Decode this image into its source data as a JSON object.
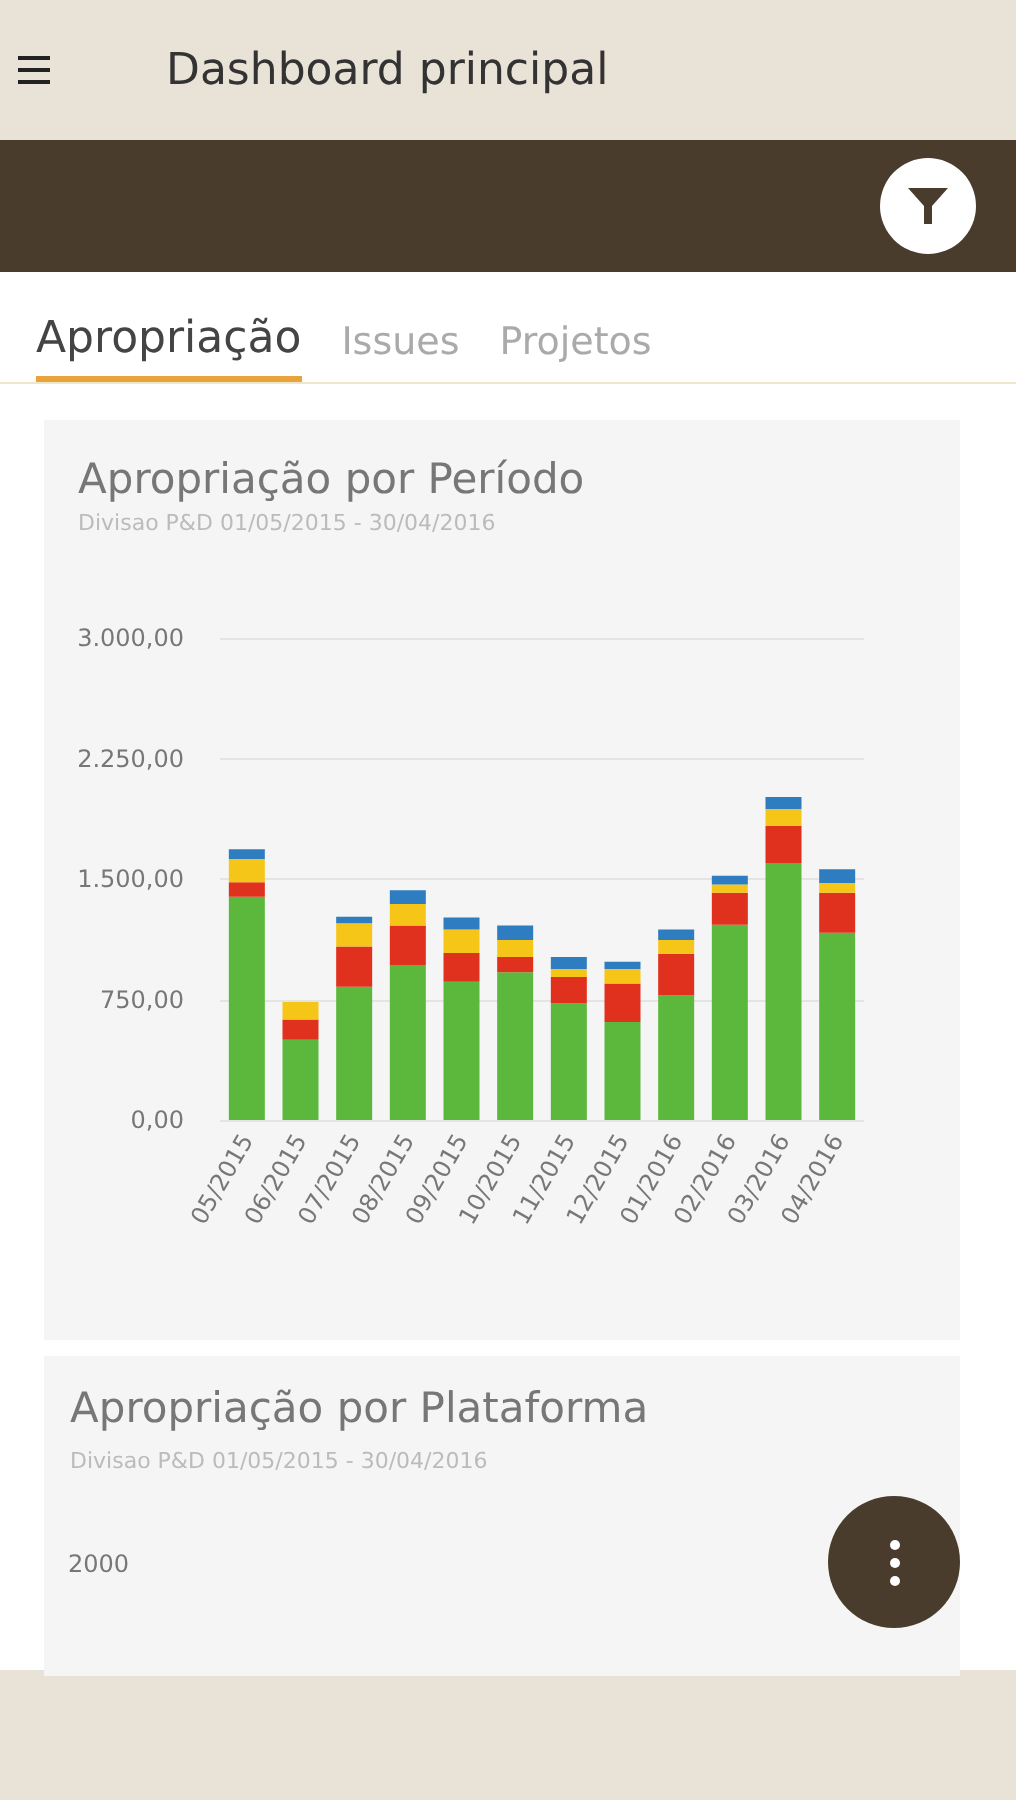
{
  "chart_data": [
    {
      "type": "other",
      "title": "Dashboard principal",
      "annotations": [
        "Apropriação",
        "Issues",
        "Projetos"
      ]
    },
    {
      "type": "bar",
      "title": "Apropriação por Período",
      "subtitle": "Divisao P&D 01/05/2015 - 30/04/2016",
      "categories": [
        "05/2015",
        "06/2015",
        "07/2015",
        "08/2015",
        "09/2015",
        "10/2015",
        "11/2015",
        "12/2015",
        "01/2016",
        "02/2016",
        "03/2016",
        "04/2016"
      ],
      "stacked": true,
      "series": [
        {
          "color": "#5cb83c",
          "values": [
            1390,
            500,
            830,
            965,
            860,
            920,
            725,
            610,
            775,
            1215,
            1600,
            1165
          ]
        },
        {
          "color": "#e0301e",
          "values": [
            90,
            125,
            250,
            245,
            180,
            95,
            165,
            240,
            260,
            200,
            230,
            250
          ]
        },
        {
          "color": "#f5c518",
          "values": [
            145,
            110,
            145,
            135,
            145,
            105,
            50,
            90,
            85,
            50,
            105,
            60
          ]
        },
        {
          "color": "#2e7dc0",
          "values": [
            60,
            0,
            40,
            85,
            75,
            90,
            75,
            45,
            65,
            55,
            75,
            85
          ]
        }
      ],
      "ylim": [
        0,
        3000
      ],
      "yticks": [
        {
          "value": 0,
          "label": "0,00"
        },
        {
          "value": 750,
          "label": "750,00"
        },
        {
          "value": 1500,
          "label": "1.500,00"
        },
        {
          "value": 2250,
          "label": "2.250,00"
        },
        {
          "value": 3000,
          "label": "3.000,00"
        }
      ],
      "grid": "y"
    },
    {
      "type": "other",
      "title": "Apropriação por Plataforma",
      "subtitle": "Divisao P&D 01/05/2015 - 30/04/2016",
      "annotations": [
        "2000"
      ]
    }
  ]
}
